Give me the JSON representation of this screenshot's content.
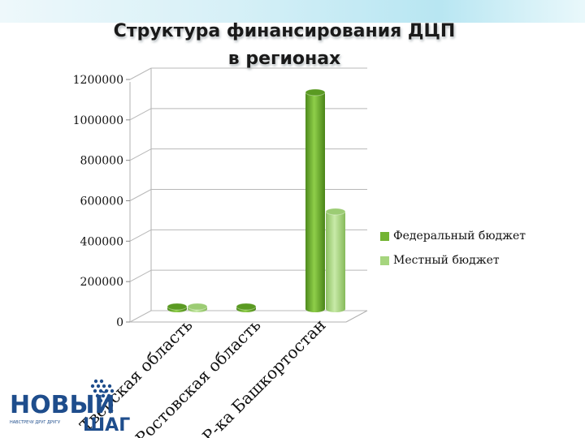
{
  "chart_data": {
    "type": "bar",
    "title": "Структура финансирования ДЦП в регионах",
    "categories": [
      "Тверская область",
      "Ростовская область",
      "Р-ка Башкортостан"
    ],
    "series": [
      {
        "name": "Федеральный бюджет",
        "values": [
          20000,
          5000,
          1080000
        ],
        "color": "#73b433"
      },
      {
        "name": "Местный бюджет",
        "values": [
          16000,
          0,
          490000
        ],
        "color": "#a6d57e"
      }
    ],
    "yticks": [
      "0",
      "200000",
      "400000",
      "600000",
      "800000",
      "1000000",
      "1200000"
    ],
    "ylim": [
      0,
      1200000
    ],
    "grid": true,
    "legend_position": "right",
    "three_d": true
  },
  "logo": {
    "line1": "НОВЫЙ",
    "tagline": "НАВСТРЕЧУ ДРУГ ДРУГУ",
    "line2": "ШАГ",
    "color": "#1e4d8c"
  }
}
